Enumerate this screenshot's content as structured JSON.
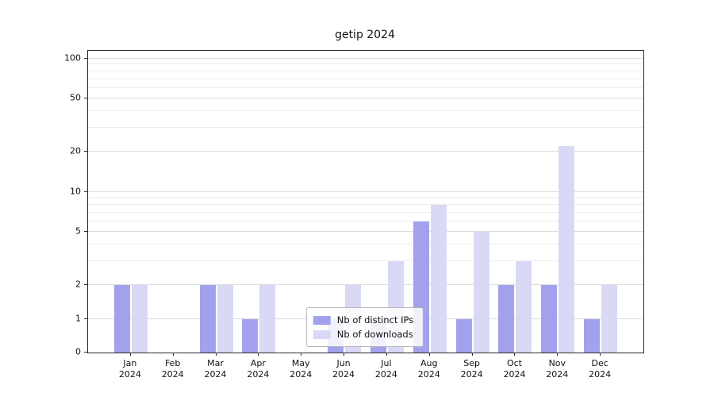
{
  "chart_data": {
    "type": "bar",
    "title": "getip 2024",
    "categories": [
      "Jan 2024",
      "Feb 2024",
      "Mar 2024",
      "Apr 2024",
      "May 2024",
      "Jun 2024",
      "Jul 2024",
      "Aug 2024",
      "Sep 2024",
      "Oct 2024",
      "Nov 2024",
      "Dec 2024"
    ],
    "series": [
      {
        "name": "Nb of distinct IPs",
        "color": "#a2a2ec",
        "values": [
          2,
          0,
          2,
          1,
          0,
          1,
          1,
          6,
          1,
          2,
          2,
          1
        ]
      },
      {
        "name": "Nb of downloads",
        "color": "#d9d9f6",
        "values": [
          2,
          0,
          2,
          2,
          0,
          2,
          3,
          8,
          5,
          3,
          22,
          2
        ]
      }
    ],
    "xlabel": "",
    "ylabel": "",
    "yscale": "symlog",
    "ylim": [
      0,
      114
    ],
    "yticks": [
      0,
      1,
      2,
      5,
      10,
      20,
      50,
      100
    ],
    "minor_yticks": [
      3,
      4,
      6,
      7,
      8,
      9,
      30,
      40,
      60,
      70,
      80,
      90
    ],
    "grid": true,
    "legend_position": "lower center"
  }
}
